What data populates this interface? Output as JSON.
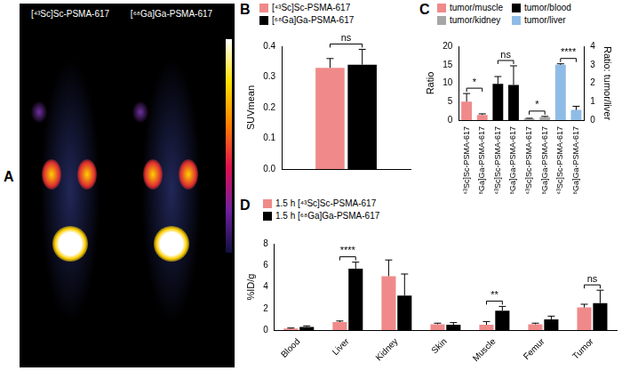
{
  "image_panel": {
    "label": "A",
    "type": "image",
    "titles": [
      "[⁴³Sc]Sc-PSMA-617",
      "[⁶⁸Ga]Ga-PSMA-617"
    ]
  },
  "chart_data": [
    {
      "label": "B",
      "type": "bar",
      "categories": [
        null
      ],
      "y_label": "SUVmean",
      "ylim": [
        0,
        0.4
      ],
      "yticks": [
        {
          "value": 0,
          "label": "0.0"
        },
        0.1,
        0.2,
        0.3,
        0.4
      ],
      "grid": false,
      "legend": "top",
      "series": [
        {
          "name": "[⁴³Sc]Sc-PSMA-617",
          "color": "#f08a8a",
          "values": [
            0.33
          ],
          "errors": [
            0.03
          ]
        },
        {
          "name": "[⁶⁸Ga]Ga-PSMA-617",
          "color": "#000000",
          "values": [
            0.34
          ],
          "errors": [
            0.05
          ]
        }
      ],
      "annotations": [
        {
          "text": "ns",
          "between": [
            {
              "series": 0,
              "category": 0
            },
            {
              "series": 1,
              "category": 0
            }
          ]
        }
      ]
    },
    {
      "label": "C",
      "type": "bar",
      "categories": [
        "[⁴³Sc]Sc-PSMA-617",
        "[⁶⁸Ga]Ga-PSMA-617",
        "[⁴³Sc]Sc-PSMA-617",
        "[⁶⁸Ga]Ga-PSMA-617",
        "[⁴³Sc]Sc-PSMA-617",
        "[⁶⁸Ga]Ga-PSMA-617",
        "[⁴³Sc]Sc-PSMA-617",
        "[⁶⁸Ga]Ga-PSMA-617"
      ],
      "y_label": "Ratio",
      "y2_label": "Ratio: tumor/liver",
      "ylim": [
        0,
        20
      ],
      "yticks": [
        0,
        5,
        10,
        15,
        20
      ],
      "y2lim": [
        0,
        4
      ],
      "y2ticks": [
        0,
        1,
        2,
        3,
        4
      ],
      "grid": false,
      "legend": "top",
      "series": [
        {
          "name": "tumor/muscle",
          "color": "#f08a8a",
          "values": [
            5.0,
            1.4,
            null,
            null,
            null,
            null,
            null,
            null
          ],
          "errors": [
            2.2,
            0.3,
            null,
            null,
            null,
            null,
            null,
            null
          ]
        },
        {
          "name": "tumor/blood",
          "color": "#000000",
          "values": [
            null,
            null,
            9.8,
            9.5,
            null,
            null,
            null,
            null
          ],
          "errors": [
            null,
            null,
            2.0,
            5.2,
            null,
            null,
            null,
            null
          ]
        },
        {
          "name": "tumor/kidney",
          "color": "#a6a6a6",
          "values": [
            null,
            null,
            null,
            null,
            0.4,
            0.8,
            null,
            null
          ],
          "errors": [
            null,
            null,
            null,
            null,
            0.1,
            0.2,
            null,
            null
          ]
        },
        {
          "name": "tumor/liver",
          "color": "#8fbce6",
          "axis": "y2",
          "values": [
            null,
            null,
            null,
            null,
            null,
            null,
            3.0,
            0.55
          ],
          "errors": [
            null,
            null,
            null,
            null,
            null,
            null,
            0.05,
            0.2
          ]
        }
      ],
      "annotations": [
        {
          "text": "*",
          "between": [
            {
              "series": 0,
              "category": 0
            },
            {
              "series": 0,
              "category": 1
            }
          ]
        },
        {
          "text": "ns",
          "between": [
            {
              "series": 1,
              "category": 2
            },
            {
              "series": 1,
              "category": 3
            }
          ]
        },
        {
          "text": "*",
          "between": [
            {
              "series": 2,
              "category": 4
            },
            {
              "series": 2,
              "category": 5
            }
          ]
        },
        {
          "text": "****",
          "between": [
            {
              "series": 3,
              "category": 6
            },
            {
              "series": 3,
              "category": 7
            }
          ]
        }
      ]
    },
    {
      "label": "D",
      "type": "bar",
      "categories": [
        "Blood",
        "Liver",
        "Kidney",
        "Skin",
        "Muscle",
        "Femur",
        "Tumor"
      ],
      "y_label": "%ID/g",
      "ylim": [
        0,
        8
      ],
      "yticks": [
        0,
        2,
        4,
        6,
        8
      ],
      "grid": false,
      "legend": "top",
      "series": [
        {
          "name": "1.5 h [⁴³Sc]Sc-PSMA-617",
          "color": "#f08a8a",
          "values": [
            0.15,
            0.75,
            5.0,
            0.55,
            0.5,
            0.55,
            2.1
          ],
          "errors": [
            0.05,
            0.1,
            1.5,
            0.1,
            0.3,
            0.1,
            0.3
          ]
        },
        {
          "name": "1.5 h [⁶⁸Ga]Ga-PSMA-617",
          "color": "#000000",
          "values": [
            0.3,
            5.7,
            3.2,
            0.5,
            1.8,
            1.0,
            2.5
          ],
          "errors": [
            0.1,
            0.6,
            2.0,
            0.2,
            0.4,
            0.3,
            1.2
          ]
        }
      ],
      "annotations": [
        {
          "text": "****",
          "between": [
            {
              "series": 0,
              "category": 1
            },
            {
              "series": 1,
              "category": 1
            }
          ]
        },
        {
          "text": "**",
          "between": [
            {
              "series": 0,
              "category": 4
            },
            {
              "series": 1,
              "category": 4
            }
          ]
        },
        {
          "text": "ns",
          "between": [
            {
              "series": 0,
              "category": 6
            },
            {
              "series": 1,
              "category": 6
            }
          ]
        }
      ]
    }
  ]
}
